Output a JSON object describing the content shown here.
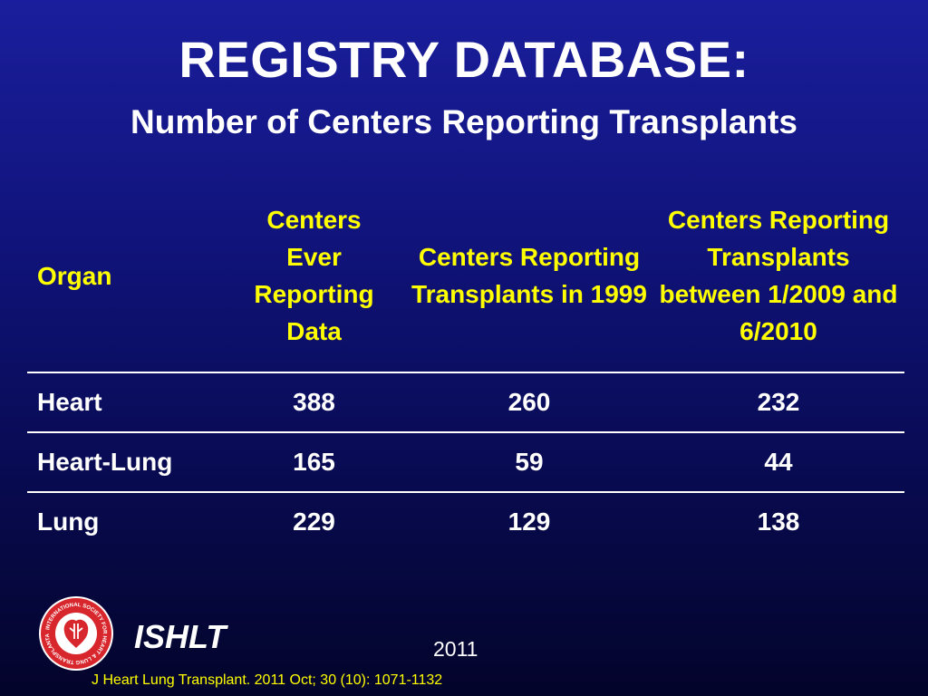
{
  "slide": {
    "title": "REGISTRY DATABASE:",
    "subtitle": "Number of Centers Reporting Transplants"
  },
  "table": {
    "headers": [
      "Organ",
      "Centers Ever Reporting Data",
      "Centers Reporting Transplants in 1999",
      "Centers Reporting Transplants between 1/2009 and 6/2010"
    ],
    "rows": [
      [
        "Heart",
        "388",
        "260",
        "232"
      ],
      [
        "Heart-Lung",
        "165",
        "59",
        "44"
      ],
      [
        "Lung",
        "229",
        "129",
        "138"
      ]
    ]
  },
  "footer": {
    "brand": "ISHLT",
    "year": "2011",
    "citation": "J Heart Lung Transplant. 2011 Oct; 30 (10): 1071-1132",
    "logo_text": "INTERNATIONAL SOCIETY FOR HEART & LUNG TRANSPLANTATION"
  },
  "colors": {
    "background": "#10137a",
    "header_text": "#ffff00",
    "body_text": "#ffffff",
    "logo_red": "#d8262d"
  },
  "icons": {
    "logo": "ishlt-logo-icon"
  }
}
